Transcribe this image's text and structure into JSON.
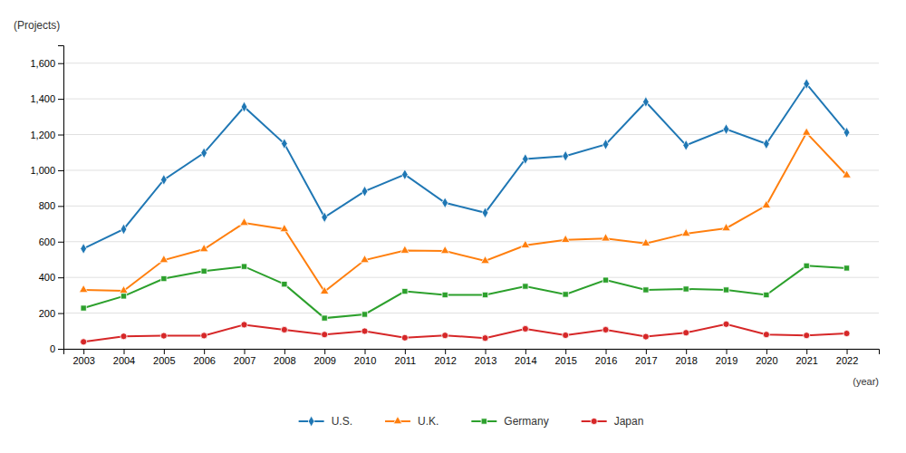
{
  "chart_data": {
    "type": "line",
    "xlabel": "(year)",
    "ylabel": "(Projects)",
    "x": [
      2003,
      2004,
      2005,
      2006,
      2007,
      2008,
      2009,
      2010,
      2011,
      2012,
      2013,
      2014,
      2015,
      2016,
      2017,
      2018,
      2019,
      2020,
      2021,
      2022
    ],
    "series": [
      {
        "name": "U.S.",
        "marker": "diamond",
        "values": [
          561,
          670,
          947,
          1097,
          1355,
          1149,
          737,
          882,
          976,
          818,
          762,
          1063,
          1080,
          1145,
          1383,
          1140,
          1230,
          1148,
          1484,
          1212
        ]
      },
      {
        "name": "U.K.",
        "marker": "triangle",
        "values": [
          330,
          325,
          497,
          558,
          705,
          670,
          321,
          497,
          550,
          548,
          492,
          580,
          610,
          618,
          590,
          645,
          675,
          803,
          1210,
          972
        ]
      },
      {
        "name": "Germany",
        "marker": "square",
        "values": [
          228,
          295,
          393,
          435,
          461,
          362,
          172,
          193,
          322,
          302,
          302,
          350,
          305,
          385,
          330,
          335,
          330,
          302,
          465,
          452
        ]
      },
      {
        "name": "Japan",
        "marker": "circle",
        "values": [
          39,
          70,
          73,
          74,
          135,
          107,
          80,
          99,
          62,
          75,
          60,
          112,
          76,
          107,
          68,
          90,
          138,
          80,
          75,
          86
        ]
      }
    ],
    "xlim": [
      2002.5,
      2022.8
    ],
    "xticks": [
      2003,
      2004,
      2005,
      2006,
      2007,
      2008,
      2009,
      2010,
      2011,
      2012,
      2013,
      2014,
      2015,
      2016,
      2017,
      2018,
      2019,
      2020,
      2021,
      2022
    ],
    "ylim": [
      0,
      1700
    ],
    "yticks": [
      0,
      200,
      400,
      600,
      800,
      {
        "value": 1000,
        "label": "1,000"
      },
      {
        "value": 1200,
        "label": "1,200"
      },
      {
        "value": 1400,
        "label": "1,400"
      },
      {
        "value": 1600,
        "label": "1,600"
      }
    ],
    "grid": true,
    "legend": "bottom"
  }
}
